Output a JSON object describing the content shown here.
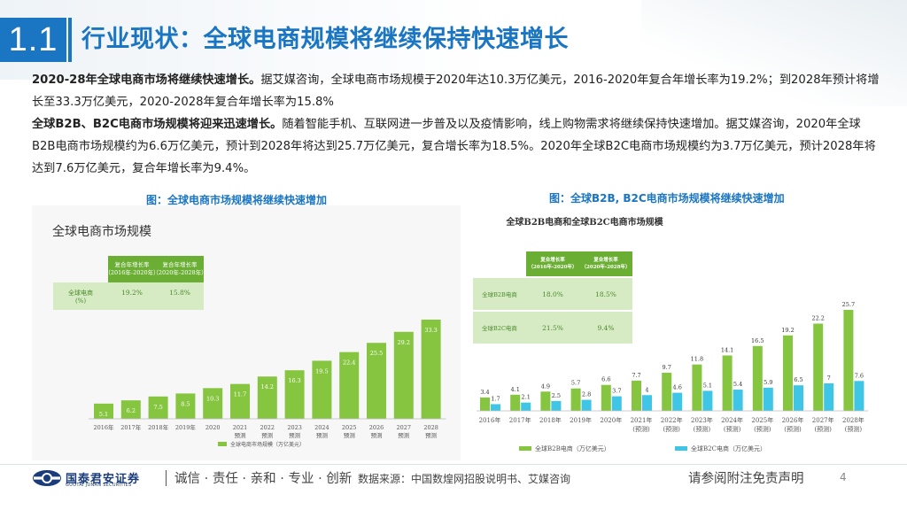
{
  "header": {
    "section_number": "1.1",
    "title": "行业现状：全球电商规模将继续保持快速增长"
  },
  "body": {
    "p1_bold": "2020-28年全球电商市场将继续快速增长。",
    "p1_text": "据艾媒咨询，全球电商市场规模于2020年达10.3万亿美元，2016-2020年复合年增长率为19.2%；到2028年预计将增长至33.3万亿美元，2020-2028年复合年增长率为15.8%",
    "p2_bold": "全球B2B、B2C电商市场规模将迎来迅速增长。",
    "p2_text": "随着智能手机、互联网进一步普及以及疫情影响，线上购物需求将继续保持快速增加。据艾媒咨询，2020年全球B2B电商市场规模约为6.6万亿美元，预计到2028年将达到25.7万亿美元，复合增长率为18.5%。2020年全球B2C电商市场规模约为3.7万亿美元，预计2028年将达到7.6万亿美元，复合年增长率为9.4%。"
  },
  "figures": {
    "left_caption": "图：全球电商市场规模将继续快速增加",
    "right_caption": "图：全球B2B, B2C电商市场规模将继续快速增加"
  },
  "chart_data": [
    {
      "type": "bar",
      "title": "全球电商市场规模",
      "categories": [
        "2016年",
        "2017年",
        "2018年",
        "2019年",
        "2020",
        "2021\n预测",
        "2022\n预测",
        "2023\n预测",
        "2024\n预测",
        "2025\n预测",
        "2026\n预测",
        "2027\n预测",
        "2028\n预测"
      ],
      "series": [
        {
          "name": "全球电商市场规模（万亿美元）",
          "values": [
            5.1,
            6.2,
            7.5,
            8.5,
            10.3,
            11.7,
            14.2,
            16.3,
            19.5,
            22.4,
            25.5,
            29.2,
            33.3
          ]
        }
      ],
      "table": {
        "headers": [
          "",
          "复合年增长率\n（2016年-2020年）",
          "复合年增长率\n（2020年-2028年）"
        ],
        "rows": [
          [
            "全球电商\n(%)",
            "19.2%",
            "15.8%"
          ]
        ]
      },
      "colors": {
        "bars": "#86c540",
        "table_header": "#6aae33",
        "table_row": "#d6ebc4"
      }
    },
    {
      "type": "bar",
      "title": "全球B2B电商和全球B2C电商市场规模",
      "categories": [
        "2016年",
        "2017年",
        "2018年",
        "2019年",
        "2020年",
        "2021年\n(预测)",
        "2022年\n(预测)",
        "2023年\n(预测)",
        "2024年\n(预测)",
        "2025年\n(预测)",
        "2026年\n(预测)",
        "2027年\n(预测)",
        "2028年\n(预测)"
      ],
      "series": [
        {
          "name": "全球B2B电商（万亿美元）",
          "values": [
            3.4,
            4.1,
            4.9,
            5.7,
            6.6,
            7.7,
            9.7,
            11.8,
            14.1,
            16.5,
            19.2,
            22.2,
            25.7
          ]
        },
        {
          "name": "全球B2C电商（万亿美元）",
          "values": [
            1.7,
            2.1,
            2.5,
            2.8,
            3.7,
            4.0,
            4.6,
            5.1,
            5.4,
            5.9,
            6.5,
            7.0,
            7.6
          ]
        }
      ],
      "table": {
        "headers": [
          "",
          "复合增长率\n（2016年-2020年）",
          "复合增长率\n（2020年-2028年）"
        ],
        "rows": [
          [
            "全球B2B电商",
            "18.0%",
            "18.5%"
          ],
          [
            "全球B2C电商",
            "21.5%",
            "9.4%"
          ]
        ]
      },
      "colors": {
        "b2b": "#86c540",
        "b2c": "#3fc6e6",
        "table_header": "#6aae33",
        "table_row": "#d6ebc4"
      }
    }
  ],
  "footer": {
    "logo_cn": "国泰君安证券",
    "logo_en": "GUOTAI JUNAN SECURITIES",
    "slogan": "诚信 · 责任 · 亲和 · 专业 · 创新",
    "source": "数据来源：中国数煌网招股说明书、艾媒咨询",
    "disclaimer": "请参阅附注免责声明",
    "page": "4"
  }
}
